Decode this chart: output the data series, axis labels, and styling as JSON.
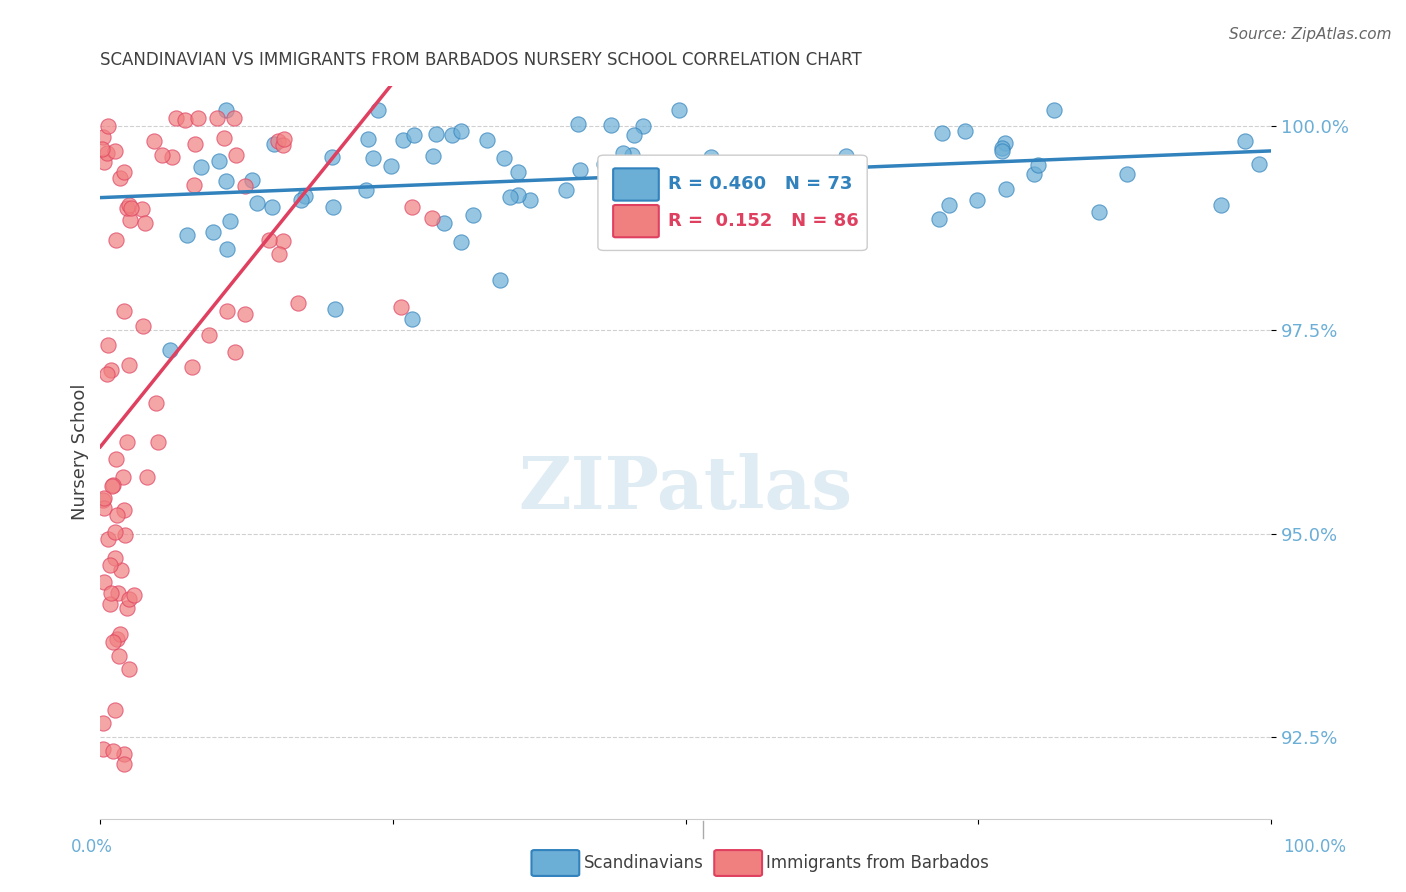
{
  "title": "SCANDINAVIAN VS IMMIGRANTS FROM BARBADOS NURSERY SCHOOL CORRELATION CHART",
  "source": "Source: ZipAtlas.com",
  "ylabel": "Nursery School",
  "xlim": [
    0,
    1
  ],
  "ylim": [
    0.915,
    1.005
  ],
  "yticks": [
    0.925,
    0.95,
    0.975,
    1.0
  ],
  "ytick_labels": [
    "92.5%",
    "95.0%",
    "97.5%",
    "100.0%"
  ],
  "scandinavian_color": "#6baed6",
  "barbados_color": "#f08080",
  "trendline_scand_color": "#3182bd",
  "trendline_barb_color": "#e04060",
  "R_scand": 0.46,
  "N_scand": 73,
  "R_barb": 0.152,
  "N_barb": 86,
  "background_color": "#ffffff",
  "grid_color": "#d0d0d0",
  "tick_label_color": "#6baed6"
}
